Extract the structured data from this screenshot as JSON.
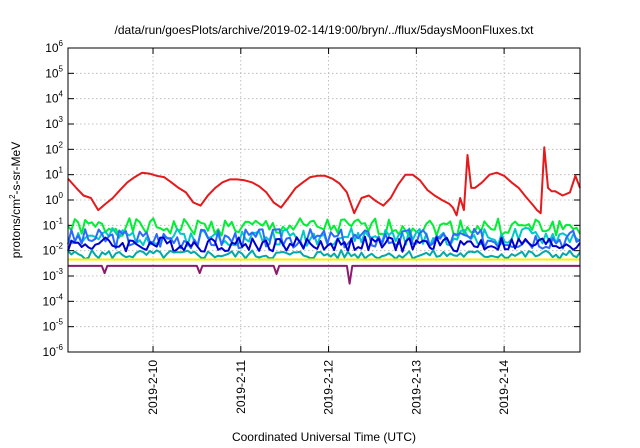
{
  "chart_data": {
    "type": "line",
    "title": "/data/run/goesPlots/archive/2019-02-14/19:00/bryn/../flux/5daysMoonFluxes.txt",
    "xlabel": "Coordinated Universal Time (UTC)",
    "ylabel": {
      "pre": "protons/cm",
      "sup": "2",
      "post": "-s-sr-MeV"
    },
    "yscale": "log",
    "ylim": [
      1e-06,
      1000000.0
    ],
    "xlim": [
      "2019-02-09 00:45",
      "2019-02-14 20:45"
    ],
    "y_ticks": [
      {
        "value": 1e-06,
        "base": "10",
        "exp": "-6"
      },
      {
        "value": 1e-05,
        "base": "10",
        "exp": "-5"
      },
      {
        "value": 0.0001,
        "base": "10",
        "exp": "-4"
      },
      {
        "value": 0.001,
        "base": "10",
        "exp": "-3"
      },
      {
        "value": 0.01,
        "base": "10",
        "exp": "-2"
      },
      {
        "value": 0.1,
        "base": "10",
        "exp": "-1"
      },
      {
        "value": 1,
        "base": "10",
        "exp": "0"
      },
      {
        "value": 10,
        "base": "10",
        "exp": "1"
      },
      {
        "value": 100,
        "base": "10",
        "exp": "2"
      },
      {
        "value": 1000,
        "base": "10",
        "exp": "3"
      },
      {
        "value": 10000,
        "base": "10",
        "exp": "4"
      },
      {
        "value": 100000,
        "base": "10",
        "exp": "5"
      },
      {
        "value": 1000000,
        "base": "10",
        "exp": "6"
      }
    ],
    "x_ticks": [
      {
        "value": "2019-02-10 00:00",
        "label": "2019-2-10"
      },
      {
        "value": "2019-02-11 00:00",
        "label": "2019-2-11"
      },
      {
        "value": "2019-02-12 00:00",
        "label": "2019-2-12"
      },
      {
        "value": "2019-02-13 00:00",
        "label": "2019-2-13"
      },
      {
        "value": "2019-02-14 00:00",
        "label": "2019-2-14"
      }
    ],
    "grid": true,
    "series": [
      {
        "color": "#e41a1c",
        "style": "smooth",
        "x": [
          "2019-02-09 00:45",
          "2019-02-09 03:00",
          "2019-02-09 05:00",
          "2019-02-09 07:00",
          "2019-02-09 09:00",
          "2019-02-09 11:00",
          "2019-02-09 13:00",
          "2019-02-09 15:00",
          "2019-02-09 17:00",
          "2019-02-09 19:00",
          "2019-02-09 21:00",
          "2019-02-09 23:00",
          "2019-02-10 01:00",
          "2019-02-10 03:00",
          "2019-02-10 05:00",
          "2019-02-10 07:00",
          "2019-02-10 09:00",
          "2019-02-10 11:00",
          "2019-02-10 13:00",
          "2019-02-10 15:00",
          "2019-02-10 17:00",
          "2019-02-10 19:00",
          "2019-02-10 21:00",
          "2019-02-10 23:00",
          "2019-02-11 01:00",
          "2019-02-11 03:00",
          "2019-02-11 05:00",
          "2019-02-11 07:00",
          "2019-02-11 09:00",
          "2019-02-11 11:00",
          "2019-02-11 13:00",
          "2019-02-11 15:00",
          "2019-02-11 17:00",
          "2019-02-11 19:00",
          "2019-02-11 21:00",
          "2019-02-11 23:00",
          "2019-02-12 01:00",
          "2019-02-12 03:00",
          "2019-02-12 05:00",
          "2019-02-12 07:00",
          "2019-02-12 09:00",
          "2019-02-12 11:00",
          "2019-02-12 13:00",
          "2019-02-12 15:00",
          "2019-02-12 17:00",
          "2019-02-12 19:00",
          "2019-02-12 21:00",
          "2019-02-12 23:00",
          "2019-02-13 01:00",
          "2019-02-13 03:00",
          "2019-02-13 05:00",
          "2019-02-13 07:00",
          "2019-02-13 09:00",
          "2019-02-13 10:00",
          "2019-02-13 11:00",
          "2019-02-13 12:00",
          "2019-02-13 13:00",
          "2019-02-13 14:00",
          "2019-02-13 15:00",
          "2019-02-13 16:00",
          "2019-02-13 18:00",
          "2019-02-13 20:00",
          "2019-02-13 22:00",
          "2019-02-14 00:00",
          "2019-02-14 02:00",
          "2019-02-14 04:00",
          "2019-02-14 06:00",
          "2019-02-14 08:00",
          "2019-02-14 09:00",
          "2019-02-14 10:00",
          "2019-02-14 11:00",
          "2019-02-14 12:00",
          "2019-02-14 13:00",
          "2019-02-14 14:00",
          "2019-02-14 16:00",
          "2019-02-14 18:00",
          "2019-02-14 19:30",
          "2019-02-14 20:45"
        ],
        "y": [
          7,
          3,
          1.5,
          1.2,
          0.4,
          0.7,
          1.2,
          2.5,
          5,
          8,
          12,
          11,
          9,
          8,
          5,
          3,
          2,
          0.8,
          0.6,
          1.5,
          3,
          5,
          6.5,
          6.5,
          6,
          5,
          3.5,
          2,
          0.8,
          0.5,
          1.2,
          3,
          5,
          8,
          9,
          9,
          7,
          4.5,
          2,
          0.3,
          1.2,
          1.5,
          0.9,
          0.6,
          1.2,
          4,
          10,
          10,
          6,
          2.5,
          1.5,
          1,
          0.7,
          0.5,
          0.25,
          1.2,
          0.4,
          60,
          3,
          3,
          5,
          10,
          12,
          9,
          5,
          3,
          1.3,
          0.6,
          0.4,
          0.3,
          120,
          3,
          2.2,
          2.2,
          1.5,
          2,
          9,
          3
        ]
      },
      {
        "color": "#00ee33",
        "style": "noisy",
        "base": 0.085,
        "amp": 0.35,
        "seed": 1,
        "n": 150,
        "x": [
          "2019-02-09 00:45",
          "2019-02-14 20:45"
        ]
      },
      {
        "color": "#00c8c8",
        "style": "noisy",
        "base": 0.035,
        "amp": 0.35,
        "seed": 2,
        "n": 150,
        "x": [
          "2019-02-09 00:45",
          "2019-02-14 20:45"
        ]
      },
      {
        "color": "#2a6aff",
        "style": "noisy",
        "base": 0.03,
        "amp": 0.4,
        "seed": 3,
        "n": 150,
        "x": [
          "2019-02-09 00:45",
          "2019-02-14 20:45"
        ]
      },
      {
        "color": "#0000cc",
        "style": "noisy",
        "base": 0.018,
        "amp": 0.3,
        "seed": 4,
        "n": 150,
        "x": [
          "2019-02-09 00:45",
          "2019-02-14 20:45"
        ]
      },
      {
        "color": "#00aaaa",
        "style": "noisy",
        "base": 0.007,
        "amp": 0.18,
        "seed": 5,
        "n": 150,
        "x": [
          "2019-02-09 00:45",
          "2019-02-14 20:45"
        ]
      },
      {
        "color": "#ffee00",
        "style": "flat",
        "x": [
          "2019-02-09 00:45",
          "2019-02-14 20:45"
        ],
        "y": [
          0.0045,
          0.0045
        ]
      },
      {
        "color": "#8b1a6e",
        "style": "smooth",
        "x": [
          "2019-02-09 00:45",
          "2019-02-09 10:00",
          "2019-02-09 10:45",
          "2019-02-09 11:30",
          "2019-02-10 12:00",
          "2019-02-10 12:45",
          "2019-02-10 13:30",
          "2019-02-11 09:00",
          "2019-02-11 09:45",
          "2019-02-11 10:30",
          "2019-02-12 05:00",
          "2019-02-12 05:45",
          "2019-02-12 06:30",
          "2019-02-14 20:45"
        ],
        "y": [
          0.0025,
          0.0025,
          0.0013,
          0.0025,
          0.0025,
          0.0013,
          0.0025,
          0.0025,
          0.0012,
          0.0025,
          0.0025,
          0.0005,
          0.0025,
          0.0025
        ]
      }
    ]
  }
}
